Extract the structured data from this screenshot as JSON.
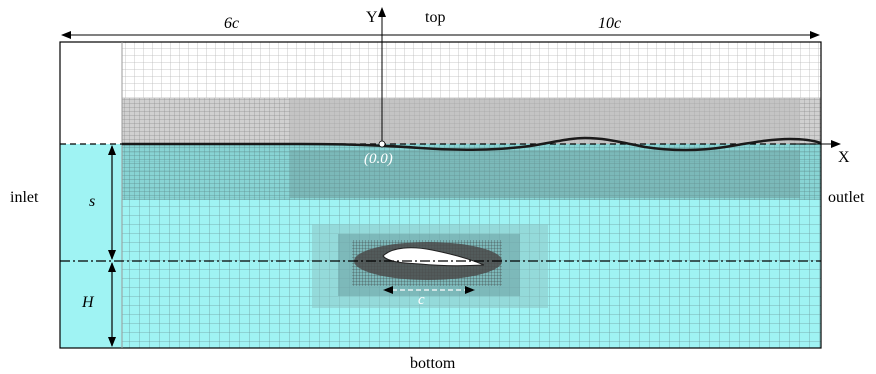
{
  "labels": {
    "left_length": "6c",
    "right_length": "10c",
    "y_axis": "Y",
    "x_axis": "X",
    "top": "top",
    "bottom": "bottom",
    "inlet": "inlet",
    "outlet": "outlet",
    "submergence": "s",
    "depth": "H",
    "origin": "(0.0)",
    "chord": "c"
  },
  "colors": {
    "air_mesh_lines": "#b9b9b9",
    "air_dense_band": "#9a9a9a",
    "water_fill": "#9ff3f3",
    "water_mesh_lines": "#6f9ea2",
    "water_dense_zone": "#6c9a9a",
    "free_surface": "#1a1a1a",
    "hydrofoil": "#ffffff",
    "foil_dense_mesh": "#4a4a4a",
    "axis_lines": "#000000"
  }
}
